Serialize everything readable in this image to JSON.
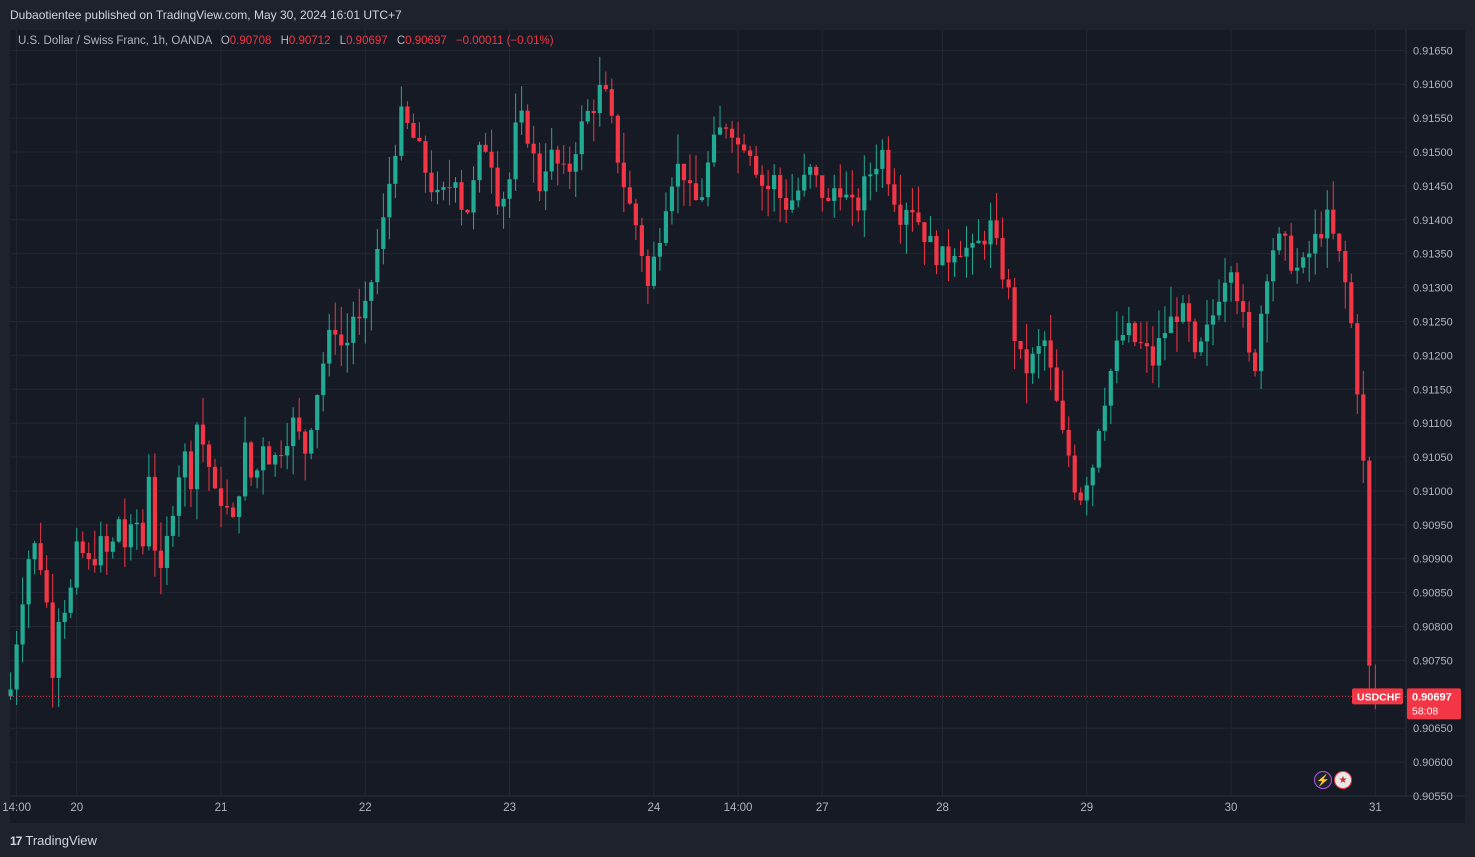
{
  "header": {
    "publisher_line": "Dubaotientee published on TradingView.com, May 30, 2024 16:01 UTC+7"
  },
  "legend": {
    "symbol_desc": "U.S. Dollar / Swiss Franc, 1h, OANDA",
    "o_label": "O",
    "o_value": "0.90708",
    "h_label": "H",
    "h_value": "0.90712",
    "l_label": "L",
    "l_value": "0.90697",
    "c_label": "C",
    "c_value": "0.90697",
    "change": "−0.00011 (−0.01%)"
  },
  "price_tag": {
    "symbol": "USDCHF",
    "price": "0.90697",
    "countdown": "58:08"
  },
  "footer": {
    "brand": "TradingView"
  },
  "icons": {
    "bolt": "lightning-icon",
    "flag": "us-flag-icon"
  },
  "colors": {
    "up": "#22ab94",
    "down": "#f23645",
    "bg": "#161a25",
    "grid": "#232733",
    "text": "#b2b5be"
  },
  "chart_data": {
    "type": "candlestick",
    "interval": "1h",
    "ylim": [
      0.9055,
      0.9168
    ],
    "y_ticks": [
      "0.91650",
      "0.91600",
      "0.91550",
      "0.91500",
      "0.91450",
      "0.91400",
      "0.91350",
      "0.91300",
      "0.91250",
      "0.91200",
      "0.91150",
      "0.91100",
      "0.91050",
      "0.91000",
      "0.90950",
      "0.90900",
      "0.90850",
      "0.90800",
      "0.90750",
      "0.90650",
      "0.90600",
      "0.90550"
    ],
    "x_ticks": [
      {
        "label": "14:00",
        "x": -2
      },
      {
        "label": "20",
        "x": 8
      },
      {
        "label": "21",
        "x": 32
      },
      {
        "label": "22",
        "x": 56
      },
      {
        "label": "23",
        "x": 80
      },
      {
        "label": "24",
        "x": 104
      },
      {
        "label": "14:00",
        "x": 118
      },
      {
        "label": "27",
        "x": 132
      },
      {
        "label": "28",
        "x": 152
      },
      {
        "label": "29",
        "x": 176
      },
      {
        "label": "30",
        "x": 200
      },
      {
        "label": "31",
        "x": 224
      }
    ],
    "x_range": [
      -3.1,
      229.1
    ],
    "last_price": 0.90697,
    "anchors": [
      [
        -3.1,
        0.907
      ],
      [
        -1.5,
        0.9082
      ],
      [
        0.5,
        0.9093
      ],
      [
        2.5,
        0.9088
      ],
      [
        4,
        0.9074
      ],
      [
        5,
        0.9082
      ],
      [
        6.8,
        0.9084
      ],
      [
        8.2,
        0.9092
      ],
      [
        10,
        0.9089
      ],
      [
        12,
        0.9092
      ],
      [
        13.5,
        0.909
      ],
      [
        15,
        0.9096
      ],
      [
        16.5,
        0.909
      ],
      [
        17.5,
        0.9097
      ],
      [
        19,
        0.9092
      ],
      [
        20,
        0.9103
      ],
      [
        21,
        0.9092
      ],
      [
        22,
        0.9087
      ],
      [
        24,
        0.9098
      ],
      [
        25,
        0.9103
      ],
      [
        26,
        0.9105
      ],
      [
        27,
        0.9102
      ],
      [
        28,
        0.911
      ],
      [
        29,
        0.9107
      ],
      [
        30.5,
        0.9102
      ],
      [
        31.5,
        0.9096
      ],
      [
        32.5,
        0.9102
      ],
      [
        33.5,
        0.9092
      ],
      [
        34.5,
        0.9098
      ],
      [
        36,
        0.9106
      ],
      [
        37.5,
        0.91
      ],
      [
        38.8,
        0.9108
      ],
      [
        40.5,
        0.9104
      ],
      [
        42.8,
        0.9108
      ],
      [
        44,
        0.911
      ],
      [
        45,
        0.9108
      ],
      [
        46,
        0.9106
      ],
      [
        47.8,
        0.9114
      ],
      [
        49,
        0.9119
      ],
      [
        50.8,
        0.9125
      ],
      [
        52.5,
        0.912
      ],
      [
        54,
        0.9126
      ],
      [
        55.3,
        0.9124
      ],
      [
        56.5,
        0.9128
      ],
      [
        57.5,
        0.9134
      ],
      [
        58.5,
        0.9137
      ],
      [
        59.5,
        0.9142
      ],
      [
        60.5,
        0.9149
      ],
      [
        62,
        0.9155
      ],
      [
        63.5,
        0.9153
      ],
      [
        65,
        0.915
      ],
      [
        66.5,
        0.9146
      ],
      [
        68,
        0.9143
      ],
      [
        69.5,
        0.9144
      ],
      [
        71,
        0.9147
      ],
      [
        72.5,
        0.914
      ],
      [
        74,
        0.9145
      ],
      [
        75.5,
        0.9152
      ],
      [
        77,
        0.9149
      ],
      [
        78.3,
        0.9142
      ],
      [
        80,
        0.9146
      ],
      [
        81,
        0.9153
      ],
      [
        82.3,
        0.9155
      ],
      [
        83.5,
        0.9151
      ],
      [
        85,
        0.9145
      ],
      [
        86.5,
        0.915
      ],
      [
        88,
        0.9148
      ],
      [
        89.5,
        0.9146
      ],
      [
        91,
        0.9151
      ],
      [
        92.5,
        0.9155
      ],
      [
        94,
        0.9157
      ],
      [
        95.5,
        0.916
      ],
      [
        97,
        0.9154
      ],
      [
        98.5,
        0.9147
      ],
      [
        100,
        0.9142
      ],
      [
        101.5,
        0.9138
      ],
      [
        103,
        0.913
      ],
      [
        104.5,
        0.9136
      ],
      [
        106,
        0.9143
      ],
      [
        107.5,
        0.9148
      ],
      [
        109,
        0.9147
      ],
      [
        110.5,
        0.9142
      ],
      [
        112,
        0.9144
      ],
      [
        113.5,
        0.915
      ],
      [
        115,
        0.9153
      ],
      [
        116.5,
        0.9155
      ],
      [
        118,
        0.9151
      ],
      [
        119.5,
        0.9152
      ],
      [
        121,
        0.9148
      ],
      [
        122.5,
        0.9144
      ],
      [
        124,
        0.9146
      ],
      [
        125.5,
        0.9142
      ],
      [
        127,
        0.9143
      ],
      [
        128.5,
        0.9145
      ],
      [
        130,
        0.9147
      ],
      [
        131.5,
        0.9145
      ],
      [
        133,
        0.9142
      ],
      [
        134.5,
        0.9146
      ],
      [
        136,
        0.9143
      ],
      [
        137.5,
        0.9141
      ],
      [
        139,
        0.9145
      ],
      [
        140.5,
        0.9148
      ],
      [
        142,
        0.915
      ],
      [
        143.5,
        0.9145
      ],
      [
        145,
        0.9141
      ],
      [
        146.5,
        0.9143
      ],
      [
        148,
        0.914
      ],
      [
        149.5,
        0.9137
      ],
      [
        151,
        0.9135
      ],
      [
        152.5,
        0.9134
      ],
      [
        154,
        0.9136
      ],
      [
        155.5,
        0.9136
      ],
      [
        157,
        0.9135
      ],
      [
        158.5,
        0.9137
      ],
      [
        160,
        0.9139
      ],
      [
        161.5,
        0.9134
      ],
      [
        163,
        0.9129
      ],
      [
        164.5,
        0.912
      ],
      [
        166,
        0.9118
      ],
      [
        167.5,
        0.912
      ],
      [
        169,
        0.9122
      ],
      [
        170.5,
        0.9115
      ],
      [
        172,
        0.9108
      ],
      [
        173.5,
        0.9104
      ],
      [
        174.5,
        0.9098
      ],
      [
        175.5,
        0.9101
      ],
      [
        177,
        0.9104
      ],
      [
        178,
        0.911
      ],
      [
        179.5,
        0.9116
      ],
      [
        181,
        0.9121
      ],
      [
        182.5,
        0.9124
      ],
      [
        184,
        0.9122
      ],
      [
        185.5,
        0.9121
      ],
      [
        187,
        0.9119
      ],
      [
        188.5,
        0.9123
      ],
      [
        190,
        0.9125
      ],
      [
        191.5,
        0.9127
      ],
      [
        193,
        0.9124
      ],
      [
        194,
        0.9119
      ],
      [
        195.5,
        0.9122
      ],
      [
        197,
        0.9126
      ],
      [
        198.5,
        0.9131
      ],
      [
        200,
        0.9134
      ],
      [
        201.5,
        0.9127
      ],
      [
        202.5,
        0.9123
      ],
      [
        203.5,
        0.9116
      ],
      [
        204.5,
        0.9122
      ],
      [
        205.5,
        0.9131
      ],
      [
        207,
        0.9136
      ],
      [
        208.5,
        0.9137
      ],
      [
        210,
        0.9134
      ],
      [
        211.5,
        0.9132
      ],
      [
        213,
        0.9135
      ],
      [
        214.5,
        0.9138
      ],
      [
        216,
        0.914
      ],
      [
        217.5,
        0.9136
      ],
      [
        218.5,
        0.9133
      ],
      [
        219.5,
        0.9128
      ],
      [
        220.5,
        0.9121
      ],
      [
        221.5,
        0.911
      ],
      [
        222.3,
        0.91
      ],
      [
        222.8,
        0.9075
      ],
      [
        223.5,
        0.907
      ],
      [
        224.5,
        0.90697
      ]
    ]
  }
}
